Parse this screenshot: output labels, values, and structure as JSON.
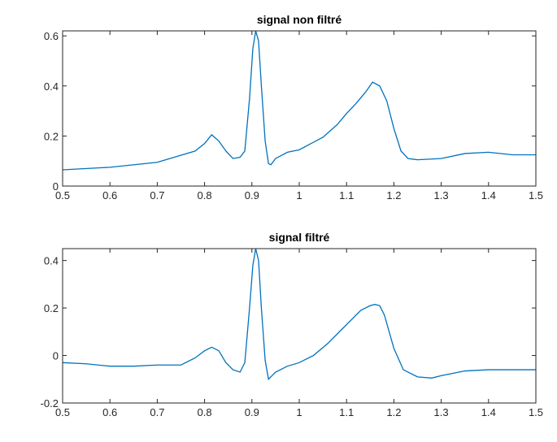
{
  "figure": {
    "background": "#ffffff",
    "axes_color": "#262626",
    "series_color": "#0072BD"
  },
  "chart_data": [
    {
      "type": "line",
      "title": "signal non filtré",
      "xlabel": "",
      "ylabel": "",
      "xlim": [
        0.5,
        1.5
      ],
      "ylim": [
        0,
        0.62
      ],
      "xticks": [
        0.5,
        0.6,
        0.7,
        0.8,
        0.9,
        1.0,
        1.1,
        1.2,
        1.3,
        1.4,
        1.5
      ],
      "xtick_labels": [
        "0.5",
        "0.6",
        "0.7",
        "0.8",
        "0.9",
        "1",
        "1.1",
        "1.2",
        "1.3",
        "1.4",
        "1.5"
      ],
      "yticks": [
        0,
        0.2,
        0.4,
        0.6
      ],
      "ytick_labels": [
        "0",
        "0.2",
        "0.4",
        "0.6"
      ],
      "grid": false,
      "series": [
        {
          "x": [
            0.5,
            0.6,
            0.7,
            0.78,
            0.8,
            0.815,
            0.83,
            0.845,
            0.86,
            0.875,
            0.885,
            0.895,
            0.902,
            0.908,
            0.914,
            0.92,
            0.928,
            0.935,
            0.94,
            0.95,
            0.975,
            1.0,
            1.02,
            1.05,
            1.08,
            1.1,
            1.12,
            1.14,
            1.155,
            1.17,
            1.185,
            1.2,
            1.215,
            1.23,
            1.25,
            1.3,
            1.35,
            1.4,
            1.45,
            1.5
          ],
          "y": [
            0.065,
            0.075,
            0.095,
            0.14,
            0.17,
            0.205,
            0.18,
            0.14,
            0.11,
            0.115,
            0.14,
            0.35,
            0.55,
            0.62,
            0.58,
            0.4,
            0.18,
            0.09,
            0.085,
            0.11,
            0.135,
            0.145,
            0.165,
            0.195,
            0.245,
            0.29,
            0.33,
            0.375,
            0.415,
            0.4,
            0.34,
            0.23,
            0.14,
            0.11,
            0.105,
            0.11,
            0.13,
            0.135,
            0.125,
            0.125
          ]
        }
      ]
    },
    {
      "type": "line",
      "title": "signal filtré",
      "xlabel": "",
      "ylabel": "",
      "xlim": [
        0.5,
        1.5
      ],
      "ylim": [
        -0.2,
        0.45
      ],
      "xticks": [
        0.5,
        0.6,
        0.7,
        0.8,
        0.9,
        1.0,
        1.1,
        1.2,
        1.3,
        1.4,
        1.5
      ],
      "xtick_labels": [
        "0.5",
        "0.6",
        "0.7",
        "0.8",
        "0.9",
        "1",
        "1.1",
        "1.2",
        "1.3",
        "1.4",
        "1.5"
      ],
      "yticks": [
        -0.2,
        0,
        0.2,
        0.4
      ],
      "ytick_labels": [
        "-0.2",
        "0",
        "0.2",
        "0.4"
      ],
      "grid": false,
      "series": [
        {
          "x": [
            0.5,
            0.55,
            0.6,
            0.65,
            0.7,
            0.75,
            0.78,
            0.8,
            0.815,
            0.83,
            0.845,
            0.86,
            0.875,
            0.885,
            0.895,
            0.902,
            0.908,
            0.914,
            0.92,
            0.928,
            0.935,
            0.94,
            0.95,
            0.975,
            1.0,
            1.03,
            1.06,
            1.09,
            1.11,
            1.13,
            1.15,
            1.16,
            1.17,
            1.18,
            1.19,
            1.2,
            1.22,
            1.25,
            1.28,
            1.3,
            1.35,
            1.4,
            1.45,
            1.5
          ],
          "y": [
            -0.03,
            -0.035,
            -0.045,
            -0.045,
            -0.04,
            -0.04,
            -0.01,
            0.02,
            0.035,
            0.02,
            -0.03,
            -0.06,
            -0.07,
            -0.03,
            0.2,
            0.38,
            0.45,
            0.4,
            0.2,
            -0.02,
            -0.1,
            -0.09,
            -0.07,
            -0.045,
            -0.03,
            0.0,
            0.05,
            0.11,
            0.15,
            0.19,
            0.21,
            0.215,
            0.21,
            0.17,
            0.1,
            0.03,
            -0.06,
            -0.09,
            -0.095,
            -0.085,
            -0.065,
            -0.06,
            -0.06,
            -0.06
          ]
        }
      ]
    }
  ]
}
